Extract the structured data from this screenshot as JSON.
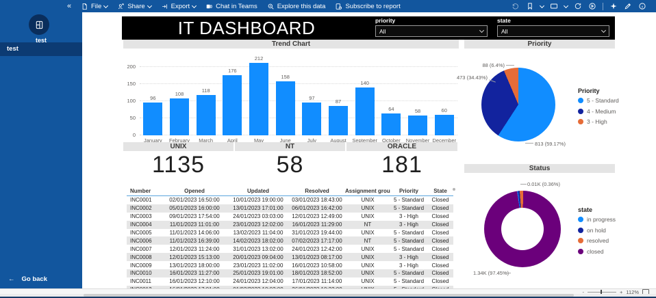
{
  "toolbar": {
    "menu": [
      {
        "label": "File",
        "icon": "file-icon",
        "chevron": true
      },
      {
        "label": "Share",
        "icon": "share-icon",
        "chevron": true
      },
      {
        "label": "Export",
        "icon": "export-icon",
        "chevron": true
      },
      {
        "label": "Chat in Teams",
        "icon": "teams-icon",
        "chevron": false
      },
      {
        "label": "Explore this data",
        "icon": "explore-icon",
        "chevron": false
      },
      {
        "label": "Subscribe to report",
        "icon": "subscribe-icon",
        "chevron": false
      }
    ],
    "right_icons": [
      "reset-icon",
      "bookmark-icon",
      "view-icon",
      "refresh-icon",
      "slideshow-icon",
      "divider",
      "copilot-icon",
      "edit-icon",
      "info-icon"
    ],
    "collapse_icon": "«"
  },
  "sidebar": {
    "workspace_label": "test",
    "items": [
      {
        "label": "test",
        "selected": true
      }
    ],
    "go_back_label": "Go back",
    "back_arrow": "←"
  },
  "header": {
    "title": "IT DASHBOARD",
    "filters": [
      {
        "label": "priority",
        "value": "All"
      },
      {
        "label": "state",
        "value": "All"
      }
    ]
  },
  "trend_chart": {
    "title": "Trend Chart",
    "chart_data": {
      "type": "bar",
      "categories": [
        "January",
        "February",
        "March",
        "April",
        "May",
        "June",
        "July",
        "August",
        "September",
        "October",
        "November",
        "December"
      ],
      "values": [
        96,
        108,
        118,
        176,
        212,
        158,
        97,
        87,
        140,
        64,
        58,
        60
      ],
      "yticks": [
        0,
        50,
        100,
        150,
        200
      ],
      "ylim": [
        0,
        220
      ],
      "bar_color": "#118DFF",
      "grid": "dotted"
    }
  },
  "priority_chart": {
    "title": "Priority",
    "legend_title": "Priority",
    "chart_data": {
      "type": "pie",
      "slices": [
        {
          "label": "5 - Standard",
          "value": 813,
          "pct": 59.17,
          "color": "#118DFF",
          "callout": "813 (59.17%)"
        },
        {
          "label": "4 - Medium",
          "value": 473,
          "pct": 34.43,
          "color": "#12239E",
          "callout": "473 (34.43%)"
        },
        {
          "label": "3 - High",
          "value": 88,
          "pct": 6.4,
          "color": "#E66C37",
          "callout": "88 (6.4%)"
        }
      ],
      "legend_position": "right"
    }
  },
  "cards": [
    {
      "label": "UNIX",
      "value": "1135"
    },
    {
      "label": "NT",
      "value": "58"
    },
    {
      "label": "ORACLE",
      "value": "181"
    }
  ],
  "table": {
    "columns": [
      "Number",
      "Opened",
      "Updated",
      "Resolved",
      "Assignment group",
      "Priority",
      "State"
    ],
    "rows": [
      [
        "INC0001",
        "02/01/2023 16:50:00",
        "10/01/2023 19:00:00",
        "03/01/2023 18:43:00",
        "UNIX",
        "5 - Standard",
        "Closed"
      ],
      [
        "INC0002",
        "05/01/2023 16:00:00",
        "13/01/2023 17:01:00",
        "06/01/2023 16:42:00",
        "UNIX",
        "5 - Standard",
        "Closed"
      ],
      [
        "INC0003",
        "09/01/2023 17:54:00",
        "24/01/2023 03:03:00",
        "12/01/2023 12:49:00",
        "UNIX",
        "3 - High",
        "Closed"
      ],
      [
        "INC0004",
        "11/01/2023 11:01:00",
        "23/01/2023 12:02:00",
        "16/01/2023 11:29:00",
        "NT",
        "3 - High",
        "Closed"
      ],
      [
        "INC0005",
        "11/01/2023 14:06:00",
        "13/02/2023 11:04:00",
        "31/01/2023 19:44:00",
        "UNIX",
        "5 - Standard",
        "Closed"
      ],
      [
        "INC0006",
        "11/01/2023 16:39:00",
        "14/02/2023 18:02:00",
        "07/02/2023 17:17:00",
        "NT",
        "5 - Standard",
        "Closed"
      ],
      [
        "INC0007",
        "12/01/2023 11:24:00",
        "31/01/2023 13:02:00",
        "24/01/2023 12:42:00",
        "UNIX",
        "5 - Standard",
        "Closed"
      ],
      [
        "INC0008",
        "12/01/2023 15:13:00",
        "20/01/2023 09:04:00",
        "13/01/2023 08:17:00",
        "UNIX",
        "3 - High",
        "Closed"
      ],
      [
        "INC0009",
        "13/01/2023 18:00:00",
        "23/01/2023 11:02:00",
        "16/01/2023 10:58:00",
        "UNIX",
        "3 - High",
        "Closed"
      ],
      [
        "INC0010",
        "16/01/2023 11:27:00",
        "25/01/2023 19:01:00",
        "18/01/2023 18:52:00",
        "UNIX",
        "5 - Standard",
        "Closed"
      ],
      [
        "INC0011",
        "16/01/2023 12:10:00",
        "24/01/2023 12:04:00",
        "17/01/2023 11:14:00",
        "UNIX",
        "5 - Standard",
        "Closed"
      ],
      [
        "INC0012",
        "16/01/2023 17:01:00",
        "01/02/2023 10:02:00",
        "26/01/2023 10:22:00",
        "UNIX",
        "5 - Standard",
        "Closed"
      ]
    ]
  },
  "status_chart": {
    "title": "Status",
    "legend_title": "state",
    "chart_data": {
      "type": "donut",
      "slices": [
        {
          "label": "in progress",
          "pct": 0.36,
          "color": "#118DFF",
          "callout": "0.01K (0.36%)"
        },
        {
          "label": "on hold",
          "pct": 0.7,
          "color": "#12239E",
          "callout": ""
        },
        {
          "label": "resolved",
          "pct": 1.49,
          "color": "#E66C37",
          "callout": ""
        },
        {
          "label": "closed",
          "pct": 97.45,
          "color": "#6B007B",
          "callout": "1.34K (97.45%)"
        }
      ],
      "legend_position": "right"
    }
  },
  "statusbar": {
    "zoom_level": "112%",
    "zoom_minus": "-",
    "zoom_plus": "+"
  }
}
